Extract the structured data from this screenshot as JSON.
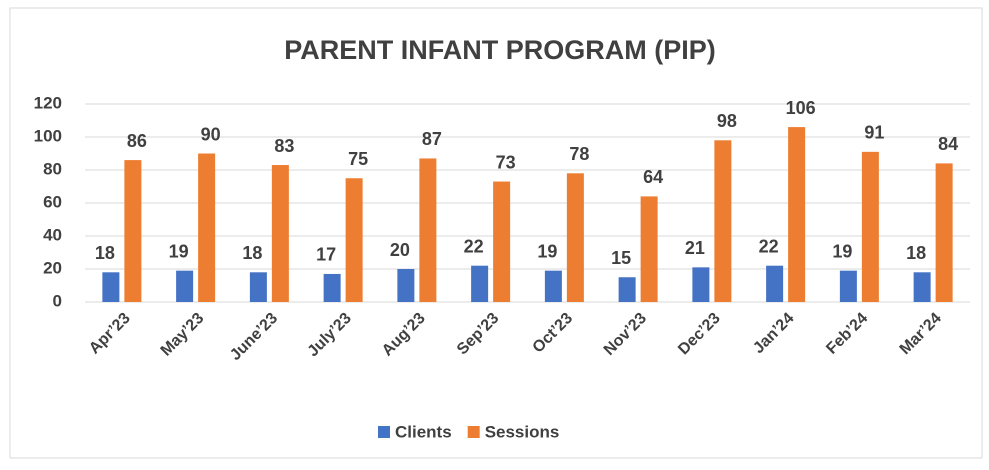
{
  "chart_data": {
    "type": "bar",
    "title": "PARENT INFANT PROGRAM (PIP)",
    "categories": [
      "Apr’23",
      "May’23",
      "June’23",
      "July’23",
      "Aug’23",
      "Sep’23",
      "Oct’23",
      "Nov’23",
      "Dec’23",
      "Jan’24",
      "Feb’24",
      "Mar’24"
    ],
    "series": [
      {
        "name": "Clients",
        "color": "#4472c4",
        "values": [
          18,
          19,
          18,
          17,
          20,
          22,
          19,
          15,
          21,
          22,
          19,
          18
        ]
      },
      {
        "name": "Sessions",
        "color": "#ed7d31",
        "values": [
          86,
          90,
          83,
          75,
          87,
          73,
          78,
          64,
          98,
          106,
          91,
          84
        ]
      }
    ],
    "ylim": [
      0,
      120
    ],
    "yticks": [
      0,
      20,
      40,
      60,
      80,
      100,
      120
    ],
    "grid": true,
    "legend": "bottom"
  }
}
